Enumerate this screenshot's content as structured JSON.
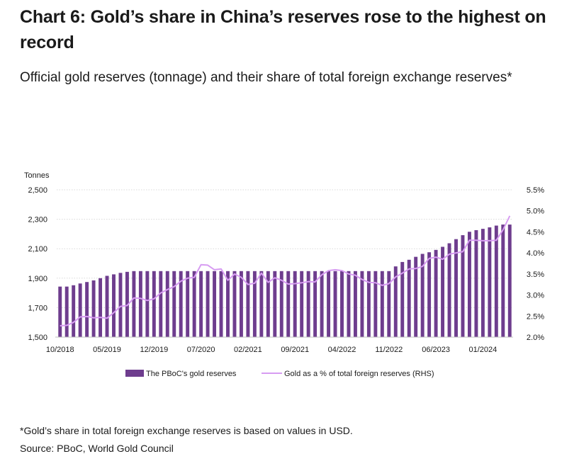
{
  "title": "Chart 6: Gold’s share in China’s reserves rose to the highest on record",
  "subtitle": "Official gold reserves (tonnage) and their share of total foreign exchange reserves*",
  "footnote": "*Gold’s share in total foreign exchange reserves is based on values in USD.",
  "source": "Source: PBoC, World Gold Council",
  "colors": {
    "bars": "#6e3d8e",
    "line": "#d79cf2",
    "grid": "#d9d9d9",
    "text": "#1a1a1a"
  },
  "chart_data": {
    "type": "bar",
    "title": "",
    "ylabel": "Tonnes",
    "ylabel_right": "",
    "ylim": [
      1500,
      2500
    ],
    "y_ticks": [
      "1,500",
      "1,700",
      "1,900",
      "2,100",
      "2,300",
      "2,500"
    ],
    "ylim_right": [
      2.0,
      5.5
    ],
    "y_ticks_right": [
      "2.0%",
      "2.5%",
      "3.0%",
      "3.5%",
      "4.0%",
      "4.5%",
      "5.0%",
      "5.5%"
    ],
    "grid": "horizontal dotted",
    "legend_position": "bottom",
    "x_tick_labels": [
      "10/2018",
      "05/2019",
      "12/2019",
      "07/2020",
      "02/2021",
      "09/2021",
      "04/2022",
      "11/2022",
      "06/2023",
      "01/2024"
    ],
    "categories": [
      "10/2018",
      "11/2018",
      "12/2018",
      "01/2019",
      "02/2019",
      "03/2019",
      "04/2019",
      "05/2019",
      "06/2019",
      "07/2019",
      "08/2019",
      "09/2019",
      "10/2019",
      "11/2019",
      "12/2019",
      "01/2020",
      "02/2020",
      "03/2020",
      "04/2020",
      "05/2020",
      "06/2020",
      "07/2020",
      "08/2020",
      "09/2020",
      "10/2020",
      "11/2020",
      "12/2020",
      "01/2021",
      "02/2021",
      "03/2021",
      "04/2021",
      "05/2021",
      "06/2021",
      "07/2021",
      "08/2021",
      "09/2021",
      "10/2021",
      "11/2021",
      "12/2021",
      "01/2022",
      "02/2022",
      "03/2022",
      "04/2022",
      "05/2022",
      "06/2022",
      "07/2022",
      "08/2022",
      "09/2022",
      "10/2022",
      "11/2022",
      "12/2022",
      "01/2023",
      "02/2023",
      "03/2023",
      "04/2023",
      "05/2023",
      "06/2023",
      "07/2023",
      "08/2023",
      "09/2023",
      "10/2023",
      "11/2023",
      "12/2023",
      "01/2024",
      "02/2024",
      "03/2024",
      "04/2024",
      "05/2024"
    ],
    "series": [
      {
        "name": "The PBoC's gold reserves",
        "type": "bar",
        "axis": "left",
        "values": [
          1843,
          1843,
          1852,
          1864,
          1874,
          1885,
          1900,
          1916,
          1926,
          1936,
          1943,
          1948,
          1948,
          1948,
          1948,
          1948,
          1948,
          1948,
          1948,
          1948,
          1948,
          1948,
          1948,
          1948,
          1948,
          1948,
          1948,
          1948,
          1948,
          1948,
          1948,
          1948,
          1948,
          1948,
          1948,
          1948,
          1948,
          1948,
          1948,
          1948,
          1948,
          1948,
          1948,
          1948,
          1948,
          1948,
          1948,
          1948,
          1948,
          1948,
          1980,
          2010,
          2025,
          2045,
          2065,
          2076,
          2092,
          2113,
          2137,
          2165,
          2192,
          2215,
          2226,
          2235,
          2245,
          2257,
          2264,
          2264
        ]
      },
      {
        "name": "Gold as a % of total foreign reserves (RHS)",
        "type": "line",
        "axis": "right",
        "values": [
          2.27,
          2.28,
          2.35,
          2.48,
          2.49,
          2.46,
          2.47,
          2.45,
          2.58,
          2.73,
          2.75,
          2.93,
          2.92,
          2.87,
          2.91,
          3.05,
          3.13,
          3.2,
          3.33,
          3.4,
          3.42,
          3.72,
          3.71,
          3.6,
          3.62,
          3.35,
          3.5,
          3.42,
          3.25,
          3.28,
          3.52,
          3.3,
          3.41,
          3.35,
          3.26,
          3.27,
          3.29,
          3.32,
          3.31,
          3.48,
          3.58,
          3.6,
          3.58,
          3.5,
          3.47,
          3.37,
          3.3,
          3.29,
          3.23,
          3.27,
          3.43,
          3.52,
          3.62,
          3.63,
          3.68,
          3.87,
          3.9,
          3.85,
          3.97,
          4.0,
          4.03,
          4.3,
          4.3,
          4.29,
          4.29,
          4.3,
          4.55,
          4.88
        ]
      }
    ]
  }
}
